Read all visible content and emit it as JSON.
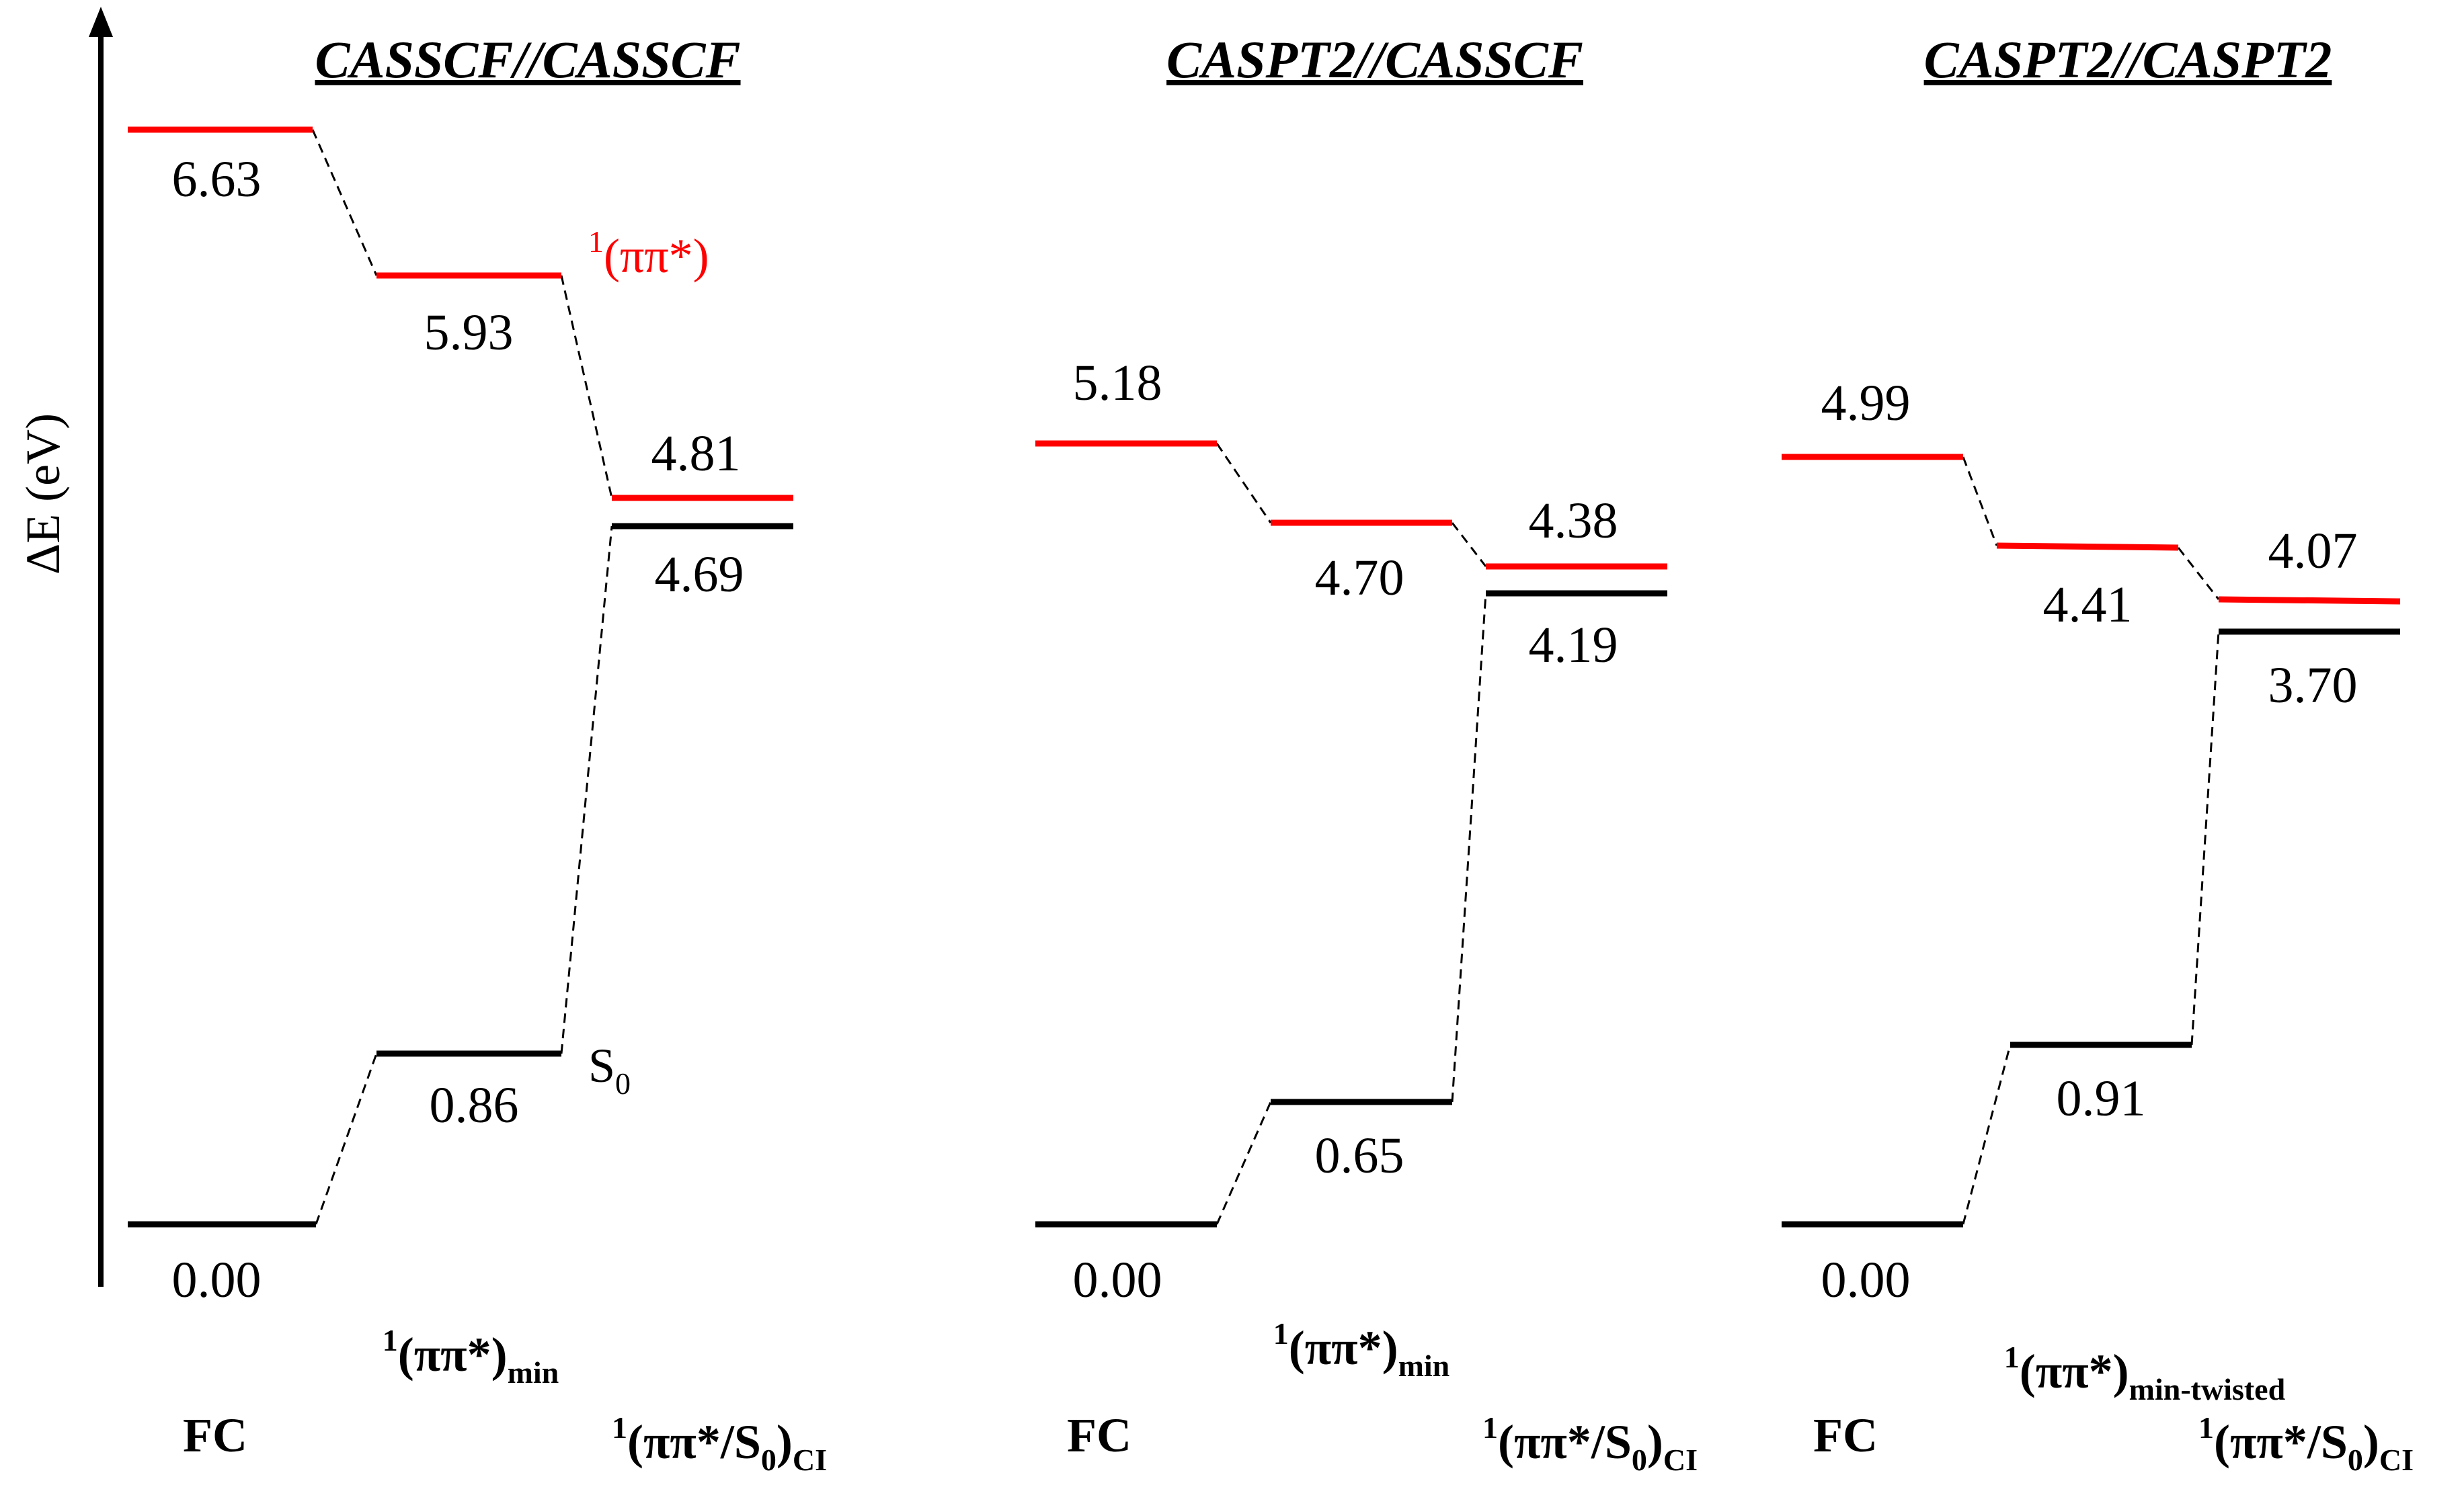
{
  "axis": {
    "label": "ΔE (eV)"
  },
  "colors": {
    "excited": "#ff0000",
    "ground": "#000000"
  },
  "state_labels": {
    "excited": "1(ππ*)",
    "ground": "S0"
  },
  "panels": [
    {
      "title": "CASSCF//CASSCF",
      "points": [
        {
          "label": "FC",
          "excited": "6.63",
          "ground": "0.00"
        },
        {
          "label": "1(ππ*)min",
          "excited": "5.93",
          "ground": "0.86"
        },
        {
          "label": "1(ππ*/S0)CI",
          "excited": "4.81",
          "ground": "4.69"
        }
      ]
    },
    {
      "title": "CASPT2//CASSCF",
      "points": [
        {
          "label": "FC",
          "excited": "5.18",
          "ground": "0.00"
        },
        {
          "label": "1(ππ*)min",
          "excited": "4.70",
          "ground": "0.65"
        },
        {
          "label": "1(ππ*/S0)CI",
          "excited": "4.38",
          "ground": "4.19"
        }
      ]
    },
    {
      "title": "CASPT2//CASPT2",
      "points": [
        {
          "label": "FC",
          "excited": "4.99",
          "ground": "0.00"
        },
        {
          "label": "1(ππ*)min-twisted",
          "excited": "4.41",
          "ground": "0.91"
        },
        {
          "label": "1(ππ*/S0)CI",
          "excited": "4.07",
          "ground": "3.70"
        }
      ]
    }
  ]
}
